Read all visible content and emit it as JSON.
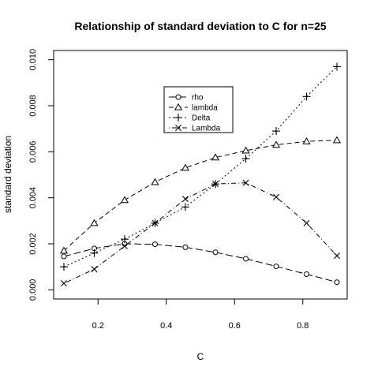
{
  "chart_data": {
    "type": "line",
    "title": "Relationship of standard deviation  to C for n=25",
    "xlabel": "C",
    "ylabel": "standard deviation",
    "xlim": [
      0.07,
      0.93
    ],
    "ylim": [
      -0.0004,
      0.0104
    ],
    "xticks": [
      0.2,
      0.4,
      0.6,
      0.8
    ],
    "xtick_labels": [
      "0.2",
      "0.4",
      "0.6",
      "0.8"
    ],
    "yticks": [
      0.0,
      0.002,
      0.004,
      0.006,
      0.008,
      0.01
    ],
    "ytick_labels": [
      "0.000",
      "0.002",
      "0.004",
      "0.006",
      "0.008",
      "0.010"
    ],
    "grid": false,
    "legend_position": "top-center",
    "x": [
      0.1,
      0.189,
      0.278,
      0.367,
      0.456,
      0.544,
      0.633,
      0.722,
      0.811,
      0.9
    ],
    "series": [
      {
        "name": "rho",
        "marker": "circle",
        "dash": "long",
        "values": [
          0.00145,
          0.0018,
          0.002,
          0.00198,
          0.00185,
          0.00163,
          0.00135,
          0.00102,
          0.00068,
          0.00033
        ]
      },
      {
        "name": "lambda",
        "marker": "triangle",
        "dash": "medium",
        "values": [
          0.0017,
          0.0029,
          0.0039,
          0.00468,
          0.0053,
          0.00575,
          0.00605,
          0.0063,
          0.00645,
          0.0065
        ]
      },
      {
        "name": "Delta",
        "marker": "plus",
        "dash": "dotted",
        "values": [
          0.001,
          0.0016,
          0.0022,
          0.0029,
          0.0036,
          0.0046,
          0.0057,
          0.0069,
          0.0084,
          0.0097
        ]
      },
      {
        "name": "Lambda",
        "marker": "cross",
        "dash": "dotdash",
        "values": [
          0.00028,
          0.0009,
          0.0019,
          0.0029,
          0.00395,
          0.0046,
          0.00465,
          0.00403,
          0.0029,
          0.00148
        ]
      }
    ]
  }
}
